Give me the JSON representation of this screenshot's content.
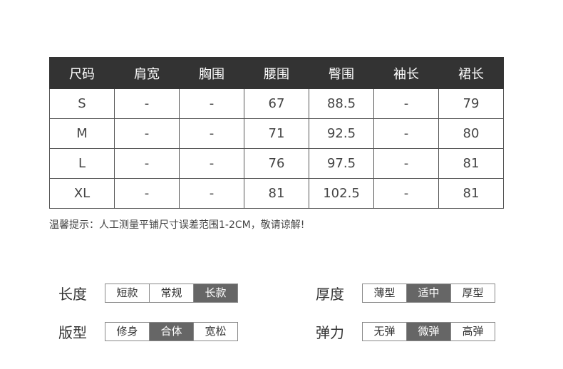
{
  "table": {
    "headers": [
      "尺码",
      "肩宽",
      "胸围",
      "腰围",
      "臀围",
      "袖长",
      "裙长"
    ],
    "rows": [
      [
        "S",
        "-",
        "-",
        "67",
        "88.5",
        "-",
        "79"
      ],
      [
        "M",
        "-",
        "-",
        "71",
        "92.5",
        "-",
        "80"
      ],
      [
        "L",
        "-",
        "-",
        "76",
        "97.5",
        "-",
        "81"
      ],
      [
        "XL",
        "-",
        "-",
        "81",
        "102.5",
        "-",
        "81"
      ]
    ]
  },
  "note": "温馨提示：人工测量平铺尺寸误差范围1-2CM，敬请谅解!",
  "attributes": [
    {
      "label": "长度",
      "options": [
        "短款",
        "常规",
        "长款"
      ],
      "selected": 2
    },
    {
      "label": "厚度",
      "options": [
        "薄型",
        "适中",
        "厚型"
      ],
      "selected": 1
    },
    {
      "label": "版型",
      "options": [
        "修身",
        "合体",
        "宽松"
      ],
      "selected": 1
    },
    {
      "label": "弹力",
      "options": [
        "无弹",
        "微弹",
        "高弹"
      ],
      "selected": 1
    }
  ],
  "colors": {
    "header_bg": "#333333",
    "selected_bg": "#666666"
  }
}
